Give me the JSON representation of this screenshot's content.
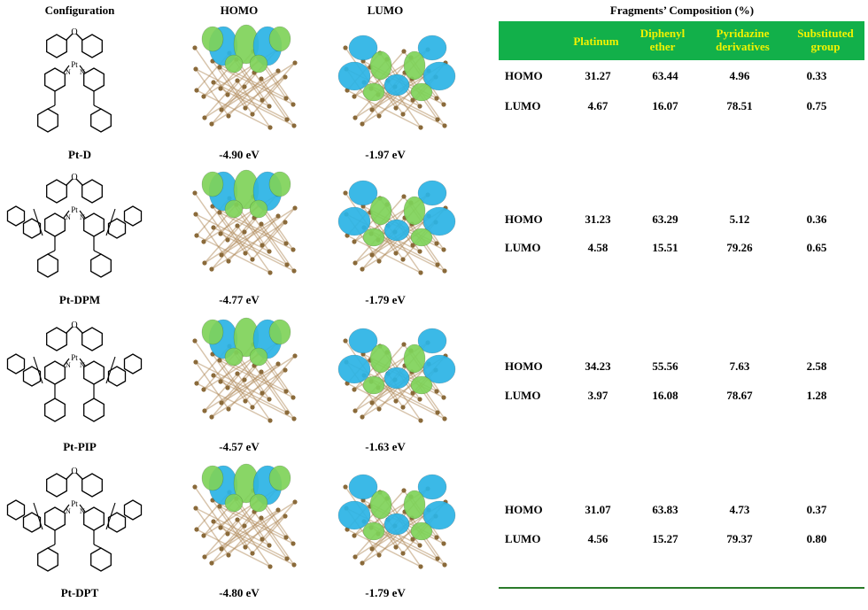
{
  "headers": {
    "configuration": "Configuration",
    "homo": "HOMO",
    "lumo": "LUMO",
    "fragments": "Fragments’ Composition (%)"
  },
  "columns": {
    "platinum": "Platinum",
    "diphenyl_1": "Diphenyl",
    "diphenyl_2": "ether",
    "pyridazine_1": "Pyridazine",
    "pyridazine_2": "derivatives",
    "substituted_1": "Substituted",
    "substituted_2": "group"
  },
  "molecules": [
    {
      "name": "Pt-D",
      "homo_energy": "-4.90 eV",
      "lumo_energy": "-1.97 eV",
      "homo": [
        "HOMO",
        "31.27",
        "63.44",
        "4.96",
        "0.33"
      ],
      "lumo": [
        "LUMO",
        "4.67",
        "16.07",
        "78.51",
        "0.75"
      ]
    },
    {
      "name": "Pt-DPM",
      "homo_energy": "-4.77 eV",
      "lumo_energy": "-1.79 eV",
      "homo": [
        "HOMO",
        "31.23",
        "63.29",
        "5.12",
        "0.36"
      ],
      "lumo": [
        "LUMO",
        "4.58",
        "15.51",
        "79.26",
        "0.65"
      ]
    },
    {
      "name": "Pt-PIP",
      "homo_energy": "-4.57 eV",
      "lumo_energy": "-1.63 eV",
      "homo": [
        "HOMO",
        "34.23",
        "55.56",
        "7.63",
        "2.58"
      ],
      "lumo": [
        "LUMO",
        "3.97",
        "16.08",
        "78.67",
        "1.28"
      ]
    },
    {
      "name": "Pt-DPT",
      "homo_energy": "-4.80 eV",
      "lumo_energy": "-1.79 eV",
      "homo": [
        "HOMO",
        "31.07",
        "63.83",
        "4.73",
        "0.37"
      ],
      "lumo": [
        "LUMO",
        "4.56",
        "15.27",
        "79.37",
        "0.80"
      ]
    }
  ],
  "atom_labels": {
    "oxygen": "O",
    "platinum": "Pt",
    "nitrogen": "N"
  },
  "colors": {
    "header_green": "#12b04a",
    "header_text": "#f2f200",
    "lobe_green": "#7fd35a",
    "lobe_cyan": "#2bb4e6",
    "rule": "#2a7a2a"
  }
}
